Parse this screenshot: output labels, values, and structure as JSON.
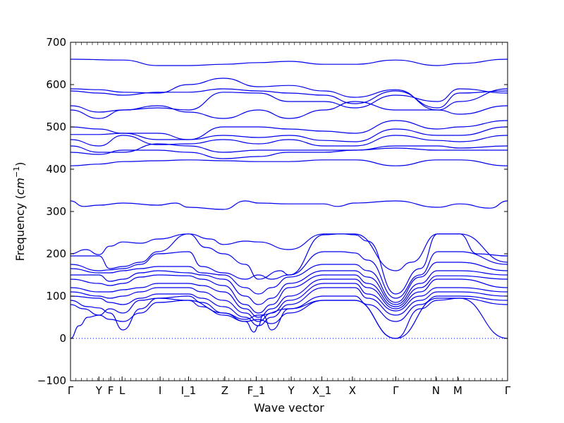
{
  "chart_data": {
    "type": "line",
    "xlabel": "Wave vector",
    "ylabel_prefix": "Frequency (",
    "ylabel_unit_base": "cm",
    "ylabel_unit_exp": "−1",
    "ylabel_suffix": ")",
    "ylim": [
      -100,
      700
    ],
    "yticks": [
      -100,
      0,
      100,
      200,
      300,
      400,
      500,
      600,
      700
    ],
    "xlim": [
      0,
      100
    ],
    "high_symmetry_points": [
      {
        "label": "Γ",
        "x": 0
      },
      {
        "label": "Y",
        "x": 6.5
      },
      {
        "label": "F",
        "x": 9.2
      },
      {
        "label": "L",
        "x": 11.8
      },
      {
        "label": "I",
        "x": 20.5
      },
      {
        "label": "I_1",
        "x": 27
      },
      {
        "label": "Z",
        "x": 35.3
      },
      {
        "label": "F_1",
        "x": 42.5
      },
      {
        "label": "Y",
        "x": 50.5
      },
      {
        "label": "X_1",
        "x": 57.5
      },
      {
        "label": "X",
        "x": 64.5
      },
      {
        "label": "Γ",
        "x": 74.4
      },
      {
        "label": "N",
        "x": 83.6
      },
      {
        "label": "M",
        "x": 88.6
      },
      {
        "label": "Γ",
        "x": 100
      }
    ],
    "reference_line": {
      "y": 0,
      "style": "dotted"
    },
    "series": [
      {
        "x": [
          0,
          12,
          20,
          27,
          35,
          43,
          50,
          58,
          65,
          74.4,
          84,
          89,
          100
        ],
        "y": [
          660,
          658,
          645,
          645,
          648,
          652,
          655,
          648,
          648,
          658,
          645,
          650,
          660
        ]
      },
      {
        "x": [
          0,
          6.5,
          12,
          20,
          27,
          35,
          43,
          50,
          58,
          65,
          74.4,
          84,
          89,
          100
        ],
        "y": [
          590,
          588,
          582,
          580,
          600,
          615,
          595,
          598,
          585,
          570,
          588,
          540,
          560,
          590
        ]
      },
      {
        "x": [
          0,
          6.5,
          12,
          20,
          27,
          35,
          43,
          50,
          58,
          65,
          74.4,
          84,
          89,
          100
        ],
        "y": [
          585,
          580,
          575,
          582,
          582,
          590,
          585,
          580,
          575,
          555,
          585,
          545,
          580,
          585
        ]
      },
      {
        "x": [
          0,
          6.5,
          12,
          20,
          27,
          35,
          43,
          50,
          58,
          65,
          74.4,
          84,
          89,
          100
        ],
        "y": [
          550,
          535,
          540,
          545,
          540,
          582,
          580,
          560,
          560,
          545,
          575,
          560,
          590,
          580
        ]
      },
      {
        "x": [
          0,
          6.5,
          12,
          20,
          27,
          35,
          43,
          50,
          58,
          65,
          74.4,
          84,
          89,
          100
        ],
        "y": [
          540,
          520,
          540,
          550,
          535,
          520,
          540,
          520,
          540,
          560,
          540,
          540,
          530,
          550
        ]
      },
      {
        "x": [
          0,
          6.5,
          12,
          20,
          27,
          35,
          43,
          50,
          58,
          65,
          74.4,
          84,
          89,
          100
        ],
        "y": [
          500,
          495,
          485,
          470,
          470,
          500,
          500,
          495,
          490,
          485,
          515,
          495,
          500,
          515
        ]
      },
      {
        "x": [
          0,
          6.5,
          12,
          20,
          27,
          35,
          43,
          50,
          58,
          65,
          74.4,
          84,
          89,
          100
        ],
        "y": [
          482,
          482,
          485,
          485,
          470,
          480,
          475,
          480,
          468,
          465,
          495,
          480,
          480,
          500
        ]
      },
      {
        "x": [
          0,
          6.5,
          12,
          20,
          27,
          35,
          43,
          50,
          58,
          65,
          74.4,
          84,
          89,
          100
        ],
        "y": [
          470,
          455,
          480,
          458,
          460,
          470,
          460,
          470,
          455,
          455,
          480,
          468,
          465,
          480
        ]
      },
      {
        "x": [
          0,
          6.5,
          12,
          20,
          27,
          35,
          43,
          50,
          58,
          65,
          74.4,
          84,
          89,
          100
        ],
        "y": [
          455,
          440,
          440,
          460,
          455,
          440,
          445,
          445,
          445,
          445,
          455,
          455,
          450,
          455
        ]
      },
      {
        "x": [
          0,
          6.5,
          12,
          20,
          27,
          35,
          43,
          50,
          58,
          65,
          74.4,
          84,
          89,
          100
        ],
        "y": [
          440,
          435,
          445,
          445,
          440,
          425,
          430,
          440,
          440,
          445,
          450,
          445,
          445,
          445
        ]
      },
      {
        "x": [
          0,
          6.5,
          12,
          20,
          27,
          35,
          43,
          50,
          58,
          65,
          74.4,
          84,
          89,
          100
        ],
        "y": [
          408,
          412,
          418,
          420,
          422,
          420,
          418,
          418,
          422,
          422,
          408,
          422,
          422,
          408
        ]
      },
      {
        "x": [
          0,
          3,
          6.5,
          12,
          20,
          24,
          27,
          35,
          40,
          43,
          50,
          58,
          61,
          65,
          74.4,
          84,
          89,
          96,
          100
        ],
        "y": [
          325,
          312,
          315,
          320,
          315,
          320,
          310,
          305,
          325,
          320,
          318,
          318,
          312,
          320,
          325,
          310,
          318,
          308,
          325
        ]
      },
      {
        "x": [
          0,
          3.5,
          6.5,
          9,
          12,
          16,
          20,
          27,
          32,
          35,
          40,
          43,
          50,
          58,
          62,
          65,
          74.4,
          78,
          84,
          89,
          93,
          100
        ],
        "y": [
          200,
          210,
          198,
          218,
          228,
          225,
          235,
          247,
          235,
          222,
          230,
          228,
          210,
          247,
          247,
          247,
          160,
          180,
          247,
          247,
          200,
          195
        ]
      },
      {
        "x": [
          0,
          6.5,
          9,
          12,
          16,
          20,
          27,
          31,
          35,
          40,
          43,
          48,
          50,
          58,
          62,
          65,
          68,
          74.4,
          80,
          84,
          89,
          100
        ],
        "y": [
          195,
          195,
          165,
          170,
          180,
          205,
          247,
          215,
          200,
          175,
          140,
          160,
          150,
          245,
          247,
          245,
          230,
          105,
          165,
          247,
          247,
          180
        ]
      },
      {
        "x": [
          0,
          6.5,
          9,
          12,
          16,
          20,
          27,
          30,
          35,
          40,
          43,
          46,
          50,
          58,
          62,
          65,
          68,
          74.4,
          80,
          84,
          89,
          100
        ],
        "y": [
          175,
          160,
          162,
          165,
          175,
          200,
          205,
          170,
          155,
          140,
          150,
          140,
          150,
          205,
          205,
          202,
          185,
          95,
          150,
          205,
          205,
          175
        ]
      },
      {
        "x": [
          0,
          6.5,
          9,
          12,
          16,
          20,
          27,
          30,
          35,
          40,
          43,
          46,
          50,
          58,
          62,
          65,
          68,
          74.4,
          80,
          84,
          89,
          100
        ],
        "y": [
          165,
          155,
          155,
          160,
          165,
          170,
          170,
          155,
          150,
          120,
          105,
          120,
          145,
          175,
          175,
          175,
          160,
          85,
          145,
          180,
          180,
          160
        ]
      },
      {
        "x": [
          0,
          6.5,
          9,
          12,
          16,
          20,
          27,
          30,
          35,
          40,
          43,
          46,
          50,
          58,
          62,
          65,
          68,
          74.4,
          80,
          84,
          89,
          100
        ],
        "y": [
          150,
          150,
          135,
          140,
          155,
          160,
          155,
          150,
          140,
          100,
          80,
          95,
          130,
          160,
          160,
          160,
          145,
          80,
          130,
          160,
          160,
          150
        ]
      },
      {
        "x": [
          0,
          6.5,
          9,
          12,
          16,
          20,
          27,
          30,
          35,
          40,
          43,
          46,
          50,
          58,
          62,
          65,
          68,
          74.4,
          80,
          84,
          89,
          100
        ],
        "y": [
          140,
          130,
          125,
          130,
          145,
          150,
          148,
          140,
          125,
          80,
          60,
          80,
          120,
          150,
          150,
          150,
          130,
          75,
          120,
          148,
          148,
          140
        ]
      },
      {
        "x": [
          0,
          6.5,
          9,
          12,
          16,
          20,
          27,
          30,
          35,
          40,
          43,
          46,
          50,
          58,
          62,
          65,
          68,
          74.4,
          80,
          84,
          89,
          100
        ],
        "y": [
          120,
          110,
          110,
          115,
          120,
          130,
          130,
          125,
          110,
          70,
          50,
          70,
          100,
          140,
          140,
          140,
          120,
          70,
          110,
          140,
          140,
          120
        ]
      },
      {
        "x": [
          0,
          6.5,
          9,
          12,
          16,
          20,
          27,
          30,
          35,
          40,
          43,
          46,
          50,
          58,
          62,
          65,
          68,
          74.4,
          80,
          84,
          89,
          100
        ],
        "y": [
          110,
          100,
          95,
          100,
          110,
          120,
          120,
          110,
          90,
          60,
          40,
          60,
          90,
          130,
          130,
          130,
          105,
          65,
          100,
          120,
          120,
          110
        ]
      },
      {
        "x": [
          0,
          6.5,
          9,
          12,
          16,
          20,
          27,
          30,
          35,
          40,
          43,
          46,
          50,
          58,
          62,
          65,
          68,
          74.4,
          80,
          84,
          89,
          100
        ],
        "y": [
          100,
          95,
          85,
          80,
          95,
          105,
          105,
          95,
          75,
          50,
          30,
          50,
          80,
          120,
          120,
          120,
          95,
          55,
          90,
          110,
          110,
          100
        ]
      },
      {
        "x": [
          0,
          4,
          6.5,
          9,
          12,
          16,
          20,
          27,
          30,
          35,
          40,
          42,
          43,
          44,
          46,
          50,
          58,
          65,
          68,
          74.4,
          80,
          84,
          89,
          100
        ],
        "y": [
          90,
          75,
          72,
          60,
          20,
          70,
          95,
          100,
          85,
          60,
          40,
          15,
          30,
          55,
          20,
          70,
          100,
          100,
          80,
          40,
          80,
          100,
          100,
          90
        ]
      },
      {
        "x": [
          0,
          3,
          6.5,
          9,
          12,
          16,
          20,
          27,
          30,
          35,
          40,
          43,
          46,
          50,
          58,
          65,
          74.4,
          80,
          84,
          89,
          100
        ],
        "y": [
          80,
          70,
          55,
          45,
          40,
          60,
          85,
          90,
          75,
          55,
          40,
          45,
          35,
          60,
          90,
          90,
          0,
          70,
          90,
          95,
          80
        ]
      },
      {
        "x": [
          0,
          2,
          4,
          6.5,
          9,
          12,
          16,
          20,
          27,
          35,
          40,
          43,
          50,
          58,
          65,
          74.4,
          84,
          89,
          100
        ],
        "y": [
          0,
          30,
          50,
          55,
          70,
          60,
          90,
          95,
          90,
          60,
          45,
          55,
          70,
          90,
          90,
          0,
          95,
          95,
          0
        ]
      }
    ]
  }
}
